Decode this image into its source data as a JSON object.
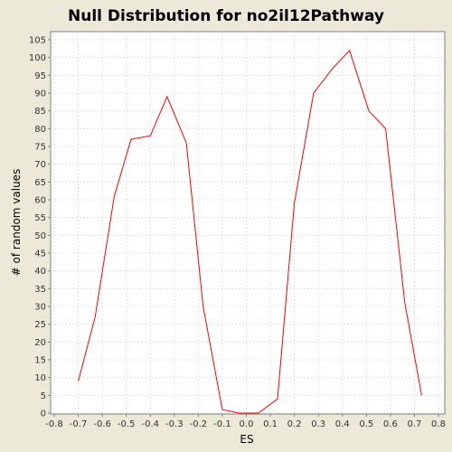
{
  "chart_data": {
    "type": "line",
    "title": "Null Distribution for no2il12Pathway",
    "xlabel": "ES",
    "ylabel": "# of random values",
    "xlim": [
      -0.8,
      0.8
    ],
    "ylim": [
      0,
      105
    ],
    "x_ticks": [
      -0.8,
      -0.7,
      -0.6,
      -0.5,
      -0.4,
      -0.3,
      -0.2,
      -0.1,
      0.0,
      0.1,
      0.2,
      0.3,
      0.4,
      0.5,
      0.6,
      0.7,
      0.8
    ],
    "x_tick_labels": [
      "-0.8",
      "-0.7",
      "-0.6",
      "-0.5",
      "-0.4",
      "-0.3",
      "-0.2",
      "-0.1",
      "0.0",
      "0.1",
      "0.2",
      "0.3",
      "0.4",
      "0.5",
      "0.6",
      "0.7",
      "0.8"
    ],
    "y_ticks": [
      0,
      5,
      10,
      15,
      20,
      25,
      30,
      35,
      40,
      45,
      50,
      55,
      60,
      65,
      70,
      75,
      80,
      85,
      90,
      95,
      100,
      105
    ],
    "y_tick_labels": [
      "0",
      "5",
      "10",
      "15",
      "20",
      "25",
      "30",
      "35",
      "40",
      "45",
      "50",
      "55",
      "60",
      "65",
      "70",
      "75",
      "80",
      "85",
      "90",
      "95",
      "100",
      "105"
    ],
    "grid": true,
    "series": [
      {
        "color": "#ff0000",
        "x": [
          -0.7,
          -0.63,
          -0.55,
          -0.48,
          -0.4,
          -0.33,
          -0.25,
          -0.18,
          -0.1,
          -0.03,
          0.05,
          0.13,
          0.2,
          0.28,
          0.36,
          0.43,
          0.51,
          0.58,
          0.66,
          0.73
        ],
        "y": [
          9,
          27,
          61,
          77,
          78,
          89,
          76,
          30,
          1,
          0,
          0,
          4,
          59,
          90,
          97,
          102,
          85,
          80,
          31,
          5
        ]
      }
    ],
    "colors": {
      "background": "#ece9d8",
      "plot_background": "#ffffff",
      "grid": "#dcdcdc",
      "axis": "#808080"
    }
  }
}
